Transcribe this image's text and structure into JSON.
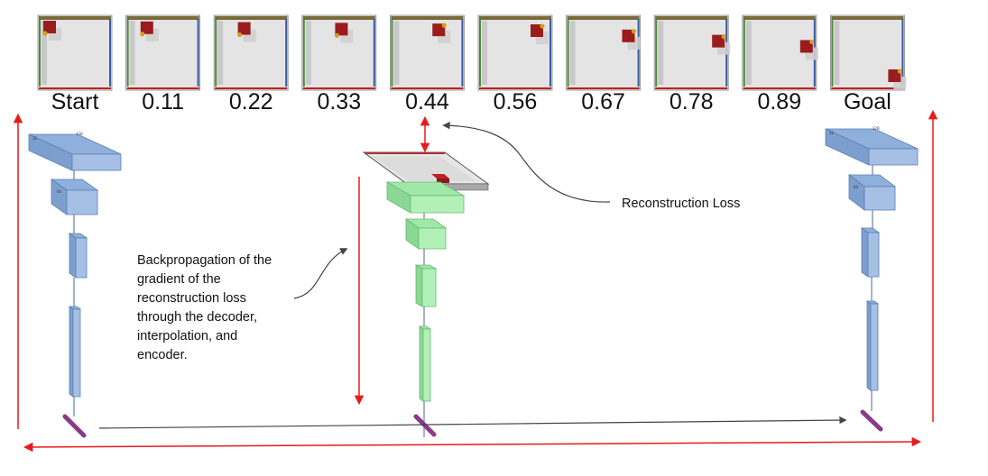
{
  "frames": [
    {
      "label": "Start",
      "t": 0.0
    },
    {
      "label": "0.11",
      "t": 0.11
    },
    {
      "label": "0.22",
      "t": 0.22
    },
    {
      "label": "0.33",
      "t": 0.33
    },
    {
      "label": "0.44",
      "t": 0.44
    },
    {
      "label": "0.56",
      "t": 0.56
    },
    {
      "label": "0.67",
      "t": 0.67
    },
    {
      "label": "0.78",
      "t": 0.78
    },
    {
      "label": "0.89",
      "t": 0.89
    },
    {
      "label": "Goal",
      "t": 1.0
    }
  ],
  "annotations": {
    "reconstruction_loss": "Reconstruction Loss",
    "backprop_lines": [
      "Backpropagation of the",
      "gradient of the",
      "reconstruction loss",
      "through the decoder,",
      "interpolation, and",
      "encoder."
    ]
  },
  "colors": {
    "encoder": "#8fb0dc",
    "decoder": "#9fe8a8",
    "latent": "#8a3a88",
    "arrow_red": "#e81a1a",
    "arrow_gray": "#444444",
    "block": "#9b1c1c",
    "scene_floor": "#dcdcdc"
  }
}
